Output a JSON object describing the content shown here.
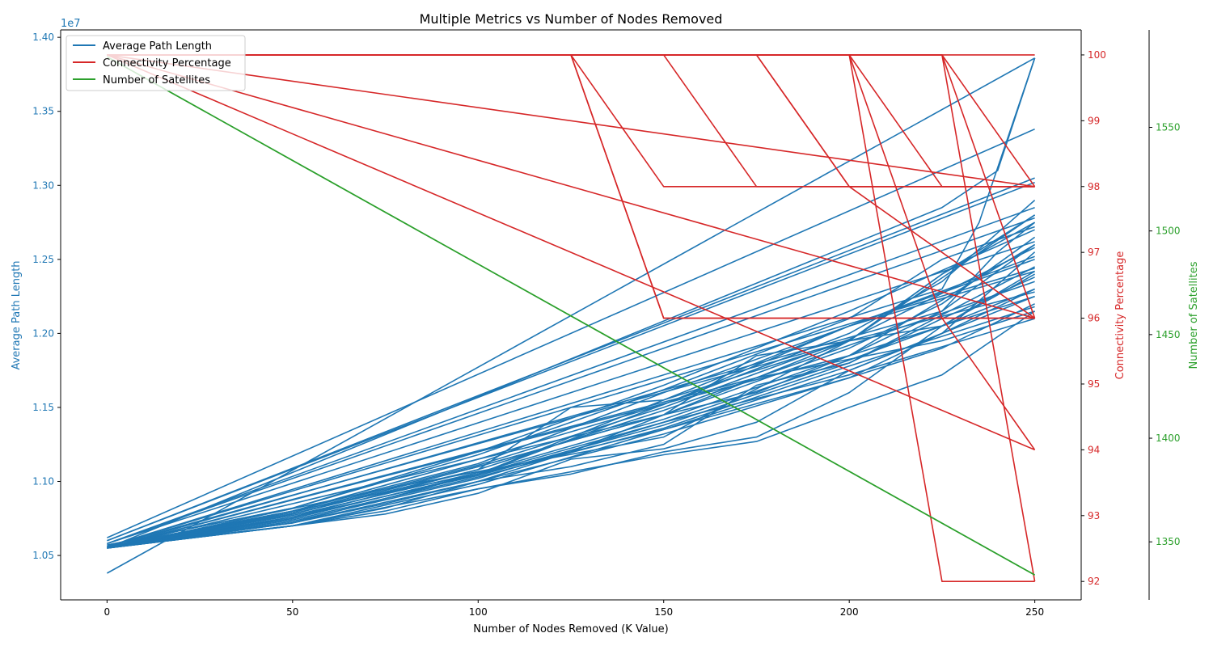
{
  "chart_data": {
    "type": "line",
    "title": "Multiple Metrics vs Number of Nodes Removed",
    "xlabel": "Number of Nodes Removed (K Value)",
    "xlim": [
      -12.5,
      262.5
    ],
    "xticks": [
      0,
      50,
      100,
      150,
      200,
      250
    ],
    "grid": false,
    "legend_position": "top-left",
    "axes": {
      "left": {
        "label": "Average Path Length",
        "color": "#1f77b4",
        "offset_text": "1e7",
        "scale_factor": 10000000,
        "ylim": [
          10.2,
          14.05
        ],
        "ticks": [
          10.5,
          11.0,
          11.5,
          12.0,
          12.5,
          13.0,
          13.5,
          14.0
        ],
        "tick_labels": [
          "1.05",
          "1.10",
          "1.15",
          "1.20",
          "1.25",
          "1.30",
          "1.35",
          "1.40"
        ]
      },
      "right": {
        "label": "Connectivity Percentage",
        "color": "#d62728",
        "ylim": [
          91.72,
          100.38
        ],
        "ticks": [
          92,
          93,
          94,
          95,
          96,
          97,
          98,
          99,
          100
        ],
        "tick_labels": [
          "92",
          "93",
          "94",
          "95",
          "96",
          "97",
          "98",
          "99",
          "100"
        ]
      },
      "right2": {
        "label": "Number of Satellites",
        "color": "#2ca02c",
        "ylim": [
          1322,
          1597
        ],
        "ticks": [
          1350,
          1400,
          1450,
          1500,
          1550
        ],
        "tick_labels": [
          "1350",
          "1400",
          "1450",
          "1500",
          "1550"
        ]
      }
    },
    "series": [
      {
        "name": "Average Path Length",
        "axis": "left",
        "color": "#1f77b4",
        "runs": [
          {
            "x": [
              0,
              250
            ],
            "y": [
              10.38,
              13.86
            ]
          },
          {
            "x": [
              0,
              250
            ],
            "y": [
              10.62,
              13.38
            ]
          },
          {
            "x": [
              0,
              250
            ],
            "y": [
              10.6,
              13.05
            ]
          },
          {
            "x": [
              0,
              250
            ],
            "y": [
              10.6,
              13.02
            ]
          },
          {
            "x": [
              0,
              250
            ],
            "y": [
              10.58,
              12.85
            ]
          },
          {
            "x": [
              0,
              250
            ],
            "y": [
              10.58,
              12.78
            ]
          },
          {
            "x": [
              0,
              250
            ],
            "y": [
              10.58,
              12.62
            ]
          },
          {
            "x": [
              0,
              250
            ],
            "y": [
              10.56,
              12.44
            ]
          },
          {
            "x": [
              0,
              100,
              150,
              200,
              250
            ],
            "y": [
              10.55,
              11.05,
              11.55,
              12.05,
              12.42
            ]
          },
          {
            "x": [
              0,
              50,
              100,
              150,
              200,
              250
            ],
            "y": [
              10.55,
              10.72,
              11.05,
              11.52,
              12.05,
              12.5
            ]
          },
          {
            "x": [
              0,
              50,
              75,
              100,
              125,
              150,
              175,
              200,
              225,
              250
            ],
            "y": [
              10.55,
              10.72,
              10.85,
              11.0,
              11.2,
              11.45,
              11.6,
              11.85,
              12.15,
              12.6
            ]
          },
          {
            "x": [
              0,
              50,
              75,
              100,
              125,
              150,
              175,
              200,
              225,
              250
            ],
            "y": [
              10.55,
              10.7,
              10.8,
              10.95,
              11.05,
              11.2,
              11.3,
              11.6,
              12.05,
              12.4
            ]
          },
          {
            "x": [
              0,
              50,
              75,
              100,
              125,
              150,
              175,
              200,
              225,
              250
            ],
            "y": [
              10.56,
              10.7,
              10.78,
              10.92,
              11.15,
              11.22,
              11.4,
              11.75,
              12.0,
              12.55
            ]
          },
          {
            "x": [
              0,
              50,
              75,
              100,
              125,
              150,
              175,
              200,
              225,
              250
            ],
            "y": [
              10.55,
              10.7,
              10.82,
              11.0,
              11.1,
              11.25,
              11.65,
              11.8,
              12.1,
              12.38
            ]
          },
          {
            "x": [
              0,
              50,
              100,
              150,
              175,
              200,
              225,
              250
            ],
            "y": [
              10.55,
              10.7,
              10.95,
              11.18,
              11.27,
              11.5,
              11.72,
              12.15
            ]
          },
          {
            "x": [
              0,
              50,
              100,
              150,
              200,
              225,
              250
            ],
            "y": [
              10.55,
              10.7,
              10.98,
              11.35,
              11.7,
              11.9,
              12.2
            ]
          },
          {
            "x": [
              0,
              50,
              100,
              150,
              200,
              225,
              250
            ],
            "y": [
              10.56,
              10.75,
              11.05,
              11.4,
              11.82,
              12.05,
              12.3
            ]
          },
          {
            "x": [
              0,
              50,
              100,
              150,
              200,
              225,
              250
            ],
            "y": [
              10.56,
              10.78,
              11.1,
              11.45,
              11.9,
              12.2,
              12.65
            ]
          },
          {
            "x": [
              0,
              50,
              100,
              125,
              150,
              200,
              225,
              250
            ],
            "y": [
              10.55,
              10.76,
              11.08,
              11.5,
              11.55,
              11.95,
              12.4,
              12.75
            ]
          },
          {
            "x": [
              0,
              50,
              100,
              150,
              200,
              225,
              250
            ],
            "y": [
              10.56,
              10.8,
              11.15,
              11.52,
              12.0,
              12.35,
              12.9
            ]
          },
          {
            "x": [
              0,
              50,
              100,
              150,
              200,
              250
            ],
            "y": [
              10.55,
              10.73,
              11.02,
              11.4,
              11.72,
              12.1
            ]
          },
          {
            "x": [
              0,
              50,
              100,
              150,
              200,
              250
            ],
            "y": [
              10.56,
              10.8,
              11.12,
              11.6,
              12.05,
              12.52
            ]
          },
          {
            "x": [
              0,
              50,
              100,
              150,
              200,
              250
            ],
            "y": [
              10.57,
              10.82,
              11.2,
              11.65,
              12.15,
              12.7
            ]
          },
          {
            "x": [
              0,
              50,
              100,
              150,
              200,
              250
            ],
            "y": [
              10.55,
              10.75,
              11.05,
              11.35,
              11.75,
              12.25
            ]
          },
          {
            "x": [
              0,
              50,
              100,
              150,
              200,
              250
            ],
            "y": [
              10.56,
              10.78,
              11.08,
              11.48,
              11.92,
              12.35
            ]
          },
          {
            "x": [
              0,
              50,
              100,
              150,
              200,
              250
            ],
            "y": [
              10.56,
              10.77,
              11.06,
              11.42,
              11.85,
              12.6
            ]
          },
          {
            "x": [
              0,
              50,
              100,
              150,
              200,
              250
            ],
            "y": [
              10.56,
              10.76,
              11.04,
              11.38,
              11.8,
              12.45
            ]
          },
          {
            "x": [
              0,
              50,
              100,
              150,
              200,
              250
            ],
            "y": [
              10.55,
              10.74,
              11.03,
              11.36,
              11.78,
              12.18
            ]
          },
          {
            "x": [
              0,
              50,
              100,
              150,
              200,
              250
            ],
            "y": [
              10.56,
              10.79,
              11.11,
              11.5,
              11.96,
              12.58
            ]
          },
          {
            "x": [
              0,
              50,
              100,
              150,
              200,
              225,
              250
            ],
            "y": [
              10.56,
              10.78,
              11.1,
              11.45,
              11.95,
              12.4,
              12.8
            ]
          },
          {
            "x": [
              0,
              50,
              100,
              150,
              200,
              225,
              250
            ],
            "y": [
              10.57,
              10.82,
              11.18,
              11.62,
              12.1,
              12.5,
              12.72
            ]
          },
          {
            "x": [
              0,
              50,
              100,
              150,
              200,
              250
            ],
            "y": [
              10.55,
              10.72,
              11.0,
              11.32,
              11.7,
              12.3
            ]
          },
          {
            "x": [
              0,
              75,
              150,
              200,
              250
            ],
            "y": [
              10.55,
              10.95,
              11.3,
              11.95,
              12.28
            ]
          },
          {
            "x": [
              0,
              150,
              175,
              225,
              250
            ],
            "y": [
              10.55,
              11.45,
              11.85,
              12.05,
              12.25
            ]
          },
          {
            "x": [
              0,
              175,
              225,
              250
            ],
            "y": [
              10.55,
              11.7,
              11.95,
              12.15
            ]
          },
          {
            "x": [
              0,
              200,
              225,
              250
            ],
            "y": [
              10.55,
              11.85,
              12.05,
              12.42
            ]
          },
          {
            "x": [
              0,
              200,
              250
            ],
            "y": [
              10.56,
              11.95,
              12.8
            ]
          },
          {
            "x": [
              0,
              225,
              240,
              250
            ],
            "y": [
              10.55,
              12.15,
              12.55,
              12.75
            ]
          },
          {
            "x": [
              0,
              225,
              235,
              250
            ],
            "y": [
              10.56,
              12.3,
              12.75,
              13.86
            ]
          },
          {
            "x": [
              0,
              225,
              240,
              250
            ],
            "y": [
              10.55,
              12.85,
              13.1,
              13.86
            ]
          }
        ]
      },
      {
        "name": "Connectivity Percentage",
        "axis": "right",
        "color": "#d62728",
        "runs": [
          {
            "x": [
              0,
              250
            ],
            "y": [
              100,
              100
            ]
          },
          {
            "x": [
              0,
              250
            ],
            "y": [
              100,
              98
            ]
          },
          {
            "x": [
              0,
              250
            ],
            "y": [
              100,
              96
            ]
          },
          {
            "x": [
              0,
              250
            ],
            "y": [
              100,
              94
            ]
          },
          {
            "x": [
              0,
              125,
              150,
              250
            ],
            "y": [
              100,
              100,
              96,
              96
            ]
          },
          {
            "x": [
              0,
              125,
              150,
              250
            ],
            "y": [
              100,
              100,
              96,
              96
            ]
          },
          {
            "x": [
              0,
              150,
              175,
              250
            ],
            "y": [
              100,
              100,
              98,
              98
            ]
          },
          {
            "x": [
              0,
              125,
              150,
              250
            ],
            "y": [
              100,
              100,
              98,
              98
            ]
          },
          {
            "x": [
              0,
              175,
              200,
              250
            ],
            "y": [
              100,
              100,
              98,
              98
            ]
          },
          {
            "x": [
              0,
              175,
              200,
              250
            ],
            "y": [
              100,
              100,
              98,
              96
            ]
          },
          {
            "x": [
              0,
              200,
              225,
              250
            ],
            "y": [
              100,
              100,
              92,
              92
            ]
          },
          {
            "x": [
              0,
              200,
              225,
              250
            ],
            "y": [
              100,
              100,
              96,
              94
            ]
          },
          {
            "x": [
              0,
              200,
              225,
              250
            ],
            "y": [
              100,
              100,
              98,
              98
            ]
          },
          {
            "x": [
              0,
              225,
              250
            ],
            "y": [
              100,
              100,
              98
            ]
          },
          {
            "x": [
              0,
              225,
              250
            ],
            "y": [
              100,
              100,
              92
            ]
          },
          {
            "x": [
              0,
              225,
              250
            ],
            "y": [
              100,
              100,
              96
            ]
          }
        ]
      },
      {
        "name": "Number of Satellites",
        "axis": "right2",
        "color": "#2ca02c",
        "runs": [
          {
            "x": [
              0,
              50,
              100,
              150,
              200,
              250
            ],
            "y": [
              1584,
              1534,
              1484,
              1434,
              1384,
              1334
            ]
          },
          {
            "x": [
              0,
              250
            ],
            "y": [
              1584,
              1334
            ]
          }
        ]
      }
    ]
  }
}
